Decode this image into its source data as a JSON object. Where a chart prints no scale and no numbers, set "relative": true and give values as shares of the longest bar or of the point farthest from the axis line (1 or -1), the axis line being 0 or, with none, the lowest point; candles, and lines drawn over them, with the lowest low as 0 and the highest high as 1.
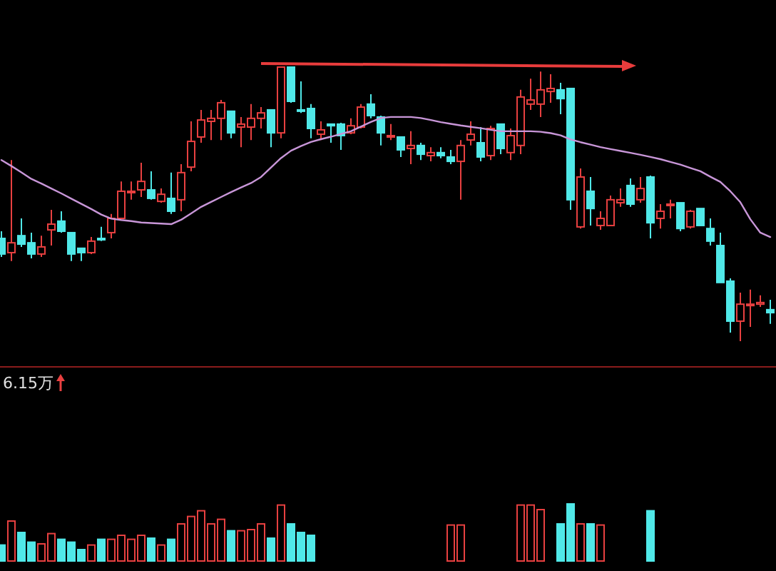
{
  "chart_data": [
    {
      "type": "candlestick",
      "relative": true,
      "categories": [
        null,
        null,
        null,
        null,
        null,
        null,
        null,
        null,
        null,
        null,
        null,
        null,
        null,
        null,
        null,
        null,
        null,
        null,
        null,
        null,
        null,
        null,
        null,
        null,
        null,
        null,
        null,
        null,
        null,
        null,
        null,
        null,
        null,
        null,
        null,
        null,
        null,
        null,
        null,
        null,
        null,
        null,
        null,
        null,
        null,
        null,
        null,
        null,
        null,
        null,
        null,
        null,
        null,
        null,
        null,
        null,
        null,
        null,
        null,
        null,
        null,
        null,
        null,
        null,
        null,
        null,
        null,
        null,
        null,
        null,
        null,
        null,
        null,
        null,
        null,
        null,
        null,
        null
      ],
      "ohlc": [
        [
          0.375,
          0.401,
          0.307,
          0.318
        ],
        [
          0.323,
          0.661,
          0.292,
          0.359
        ],
        [
          0.385,
          0.448,
          0.344,
          0.354
        ],
        [
          0.359,
          0.396,
          0.302,
          0.318
        ],
        [
          0.318,
          0.385,
          0.307,
          0.344
        ],
        [
          0.406,
          0.479,
          0.349,
          0.427
        ],
        [
          0.438,
          0.474,
          0.396,
          0.401
        ],
        [
          0.396,
          0.396,
          0.292,
          0.318
        ],
        [
          0.339,
          0.339,
          0.292,
          0.323
        ],
        [
          0.323,
          0.38,
          0.318,
          0.365
        ],
        [
          0.375,
          0.417,
          0.365,
          0.37
        ],
        [
          0.396,
          0.464,
          0.375,
          0.448
        ],
        [
          0.448,
          0.583,
          0.448,
          0.547
        ],
        [
          0.542,
          0.583,
          0.516,
          0.547
        ],
        [
          0.552,
          0.651,
          0.526,
          0.583
        ],
        [
          0.552,
          0.62,
          0.516,
          0.521
        ],
        [
          0.51,
          0.557,
          0.505,
          0.536
        ],
        [
          0.521,
          0.615,
          0.464,
          0.474
        ],
        [
          0.516,
          0.646,
          0.474,
          0.615
        ],
        [
          0.635,
          0.802,
          0.62,
          0.729
        ],
        [
          0.745,
          0.844,
          0.724,
          0.807
        ],
        [
          0.802,
          0.844,
          0.734,
          0.813
        ],
        [
          0.813,
          0.88,
          0.734,
          0.87
        ],
        [
          0.839,
          0.839,
          0.74,
          0.76
        ],
        [
          0.781,
          0.818,
          0.708,
          0.792
        ],
        [
          0.781,
          0.865,
          0.734,
          0.813
        ],
        [
          0.813,
          0.854,
          0.776,
          0.833
        ],
        [
          0.844,
          0.844,
          0.708,
          0.76
        ],
        [
          0.76,
          1,
          0.74,
          1
        ],
        [
          1,
          1,
          0.87,
          0.875
        ],
        [
          0.844,
          0.948,
          0.833,
          0.839
        ],
        [
          0.849,
          0.865,
          0.74,
          0.776
        ],
        [
          0.755,
          0.802,
          0.734,
          0.771
        ],
        [
          0.792,
          0.792,
          0.724,
          0.786
        ],
        [
          0.792,
          0.797,
          0.698,
          0.75
        ],
        [
          0.76,
          0.813,
          0.755,
          0.786
        ],
        [
          0.781,
          0.865,
          0.776,
          0.854
        ],
        [
          0.865,
          0.901,
          0.813,
          0.823
        ],
        [
          0.818,
          0.823,
          0.714,
          0.76
        ],
        [
          0.745,
          0.792,
          0.734,
          0.75
        ],
        [
          0.745,
          0.745,
          0.672,
          0.698
        ],
        [
          0.703,
          0.766,
          0.646,
          0.714
        ],
        [
          0.714,
          0.724,
          0.661,
          0.682
        ],
        [
          0.677,
          0.708,
          0.656,
          0.688
        ],
        [
          0.688,
          0.708,
          0.667,
          0.677
        ],
        [
          0.672,
          0.698,
          0.646,
          0.656
        ],
        [
          0.656,
          0.734,
          0.516,
          0.714
        ],
        [
          0.734,
          0.802,
          0.714,
          0.755
        ],
        [
          0.724,
          0.781,
          0.656,
          0.672
        ],
        [
          0.677,
          0.786,
          0.661,
          0.776
        ],
        [
          0.792,
          0.792,
          0.682,
          0.703
        ],
        [
          0.688,
          0.776,
          0.661,
          0.75
        ],
        [
          0.714,
          0.917,
          0.682,
          0.891
        ],
        [
          0.865,
          0.958,
          0.844,
          0.88
        ],
        [
          0.865,
          0.984,
          0.818,
          0.917
        ],
        [
          0.911,
          0.974,
          0.87,
          0.922
        ],
        [
          0.917,
          0.943,
          0.828,
          0.885
        ],
        [
          0.922,
          0.922,
          0.479,
          0.516
        ],
        [
          0.417,
          0.63,
          0.411,
          0.599
        ],
        [
          0.547,
          0.599,
          0.422,
          0.484
        ],
        [
          0.422,
          0.474,
          0.406,
          0.448
        ],
        [
          0.422,
          0.531,
          0.422,
          0.516
        ],
        [
          0.505,
          0.557,
          0.49,
          0.516
        ],
        [
          0.568,
          0.594,
          0.49,
          0.5
        ],
        [
          0.516,
          0.599,
          0.505,
          0.557
        ],
        [
          0.599,
          0.604,
          0.375,
          0.432
        ],
        [
          0.448,
          0.5,
          0.411,
          0.474
        ],
        [
          0.495,
          0.516,
          0.448,
          0.5
        ],
        [
          0.505,
          0.505,
          0.401,
          0.411
        ],
        [
          0.417,
          0.479,
          0.411,
          0.474
        ],
        [
          0.484,
          0.484,
          0.422,
          0.422
        ],
        [
          0.411,
          0.448,
          0.349,
          0.365
        ],
        [
          0.349,
          0.396,
          0.214,
          0.214
        ],
        [
          0.219,
          0.229,
          0.031,
          0.073
        ],
        [
          0.073,
          0.177,
          0,
          0.135
        ],
        [
          0.13,
          0.188,
          0.052,
          0.135
        ],
        [
          0.135,
          0.167,
          0.125,
          0.141
        ],
        [
          0.115,
          0.151,
          0.063,
          0.104
        ]
      ],
      "series": [
        {
          "type": "line",
          "color": "#c896d8",
          "values": [
            0.661,
            0.639,
            0.616,
            0.592,
            0.575,
            0.557,
            0.539,
            0.52,
            0.501,
            0.482,
            0.462,
            0.447,
            0.442,
            0.438,
            0.433,
            0.431,
            0.429,
            0.427,
            0.443,
            0.466,
            0.49,
            0.508,
            0.526,
            0.544,
            0.561,
            0.577,
            0.599,
            0.634,
            0.668,
            0.695,
            0.712,
            0.727,
            0.737,
            0.746,
            0.756,
            0.766,
            0.783,
            0.8,
            0.814,
            0.818,
            0.818,
            0.818,
            0.814,
            0.807,
            0.799,
            0.793,
            0.787,
            0.782,
            0.777,
            0.771,
            0.766,
            0.766,
            0.766,
            0.766,
            0.764,
            0.759,
            0.751,
            0.736,
            0.726,
            0.717,
            0.708,
            0.701,
            0.694,
            0.687,
            0.68,
            0.672,
            0.664,
            0.654,
            0.644,
            0.632,
            0.62,
            0.6,
            0.581,
            0.547,
            0.507,
            0.445,
            0.396,
            0.38
          ]
        }
      ]
    },
    {
      "type": "bar",
      "relative": true,
      "categories": [
        null,
        null,
        null,
        null,
        null,
        null,
        null,
        null,
        null,
        null,
        null,
        null,
        null,
        null,
        null,
        null,
        null,
        null,
        null,
        null,
        null,
        null,
        null,
        null,
        null,
        null,
        null,
        null,
        null,
        null,
        null,
        null,
        null,
        null,
        null,
        null,
        null,
        null,
        null,
        null,
        null,
        null,
        null,
        null,
        null,
        null,
        null,
        null,
        null,
        null,
        null,
        null,
        null,
        null,
        null,
        null,
        null,
        null,
        null,
        null,
        null,
        null,
        null,
        null,
        null,
        null,
        null,
        null,
        null,
        null,
        null,
        null,
        null,
        null,
        null,
        null,
        null,
        null
      ],
      "values": [
        0.28,
        0.7,
        0.5,
        0.33,
        0.3,
        0.48,
        0.38,
        0.33,
        0.2,
        0.28,
        0.38,
        0.38,
        0.45,
        0.38,
        0.45,
        0.4,
        0.28,
        0.38,
        0.65,
        0.78,
        0.88,
        0.65,
        0.73,
        0.53,
        0.53,
        0.55,
        0.65,
        0.4,
        0.98,
        0.65,
        0.5,
        0.45,
        null,
        null,
        null,
        null,
        null,
        null,
        null,
        null,
        null,
        null,
        null,
        null,
        null,
        0.63,
        0.63,
        null,
        null,
        null,
        null,
        null,
        0.98,
        0.98,
        0.9,
        null,
        0.65,
        1,
        0.65,
        0.65,
        0.63,
        null,
        null,
        null,
        null,
        0.88,
        null,
        null,
        null,
        null,
        null,
        null,
        null,
        null,
        null,
        null,
        null,
        null
      ],
      "colors": [
        "#50e8e8",
        "#e84040",
        "#50e8e8",
        "#50e8e8",
        "#e84040",
        "#e84040",
        "#50e8e8",
        "#50e8e8",
        "#50e8e8",
        "#e84040",
        "#50e8e8",
        "#e84040",
        "#e84040",
        "#e84040",
        "#e84040",
        "#50e8e8",
        "#e84040",
        "#50e8e8",
        "#e84040",
        "#e84040",
        "#e84040",
        "#e84040",
        "#e84040",
        "#50e8e8",
        "#e84040",
        "#e84040",
        "#e84040",
        "#50e8e8",
        "#e84040",
        "#50e8e8",
        "#50e8e8",
        "#50e8e8",
        null,
        null,
        null,
        null,
        null,
        null,
        null,
        null,
        null,
        null,
        null,
        null,
        null,
        "#e84040",
        "#e84040",
        null,
        null,
        null,
        null,
        null,
        "#e84040",
        "#e84040",
        "#e84040",
        null,
        "#50e8e8",
        "#50e8e8",
        "#e84040",
        "#50e8e8",
        "#e84040",
        null,
        null,
        null,
        null,
        "#50e8e8",
        null,
        null,
        null,
        null,
        null,
        null,
        null,
        null,
        null,
        null,
        null,
        null
      ],
      "annotations": [
        "6.15万"
      ]
    }
  ]
}
